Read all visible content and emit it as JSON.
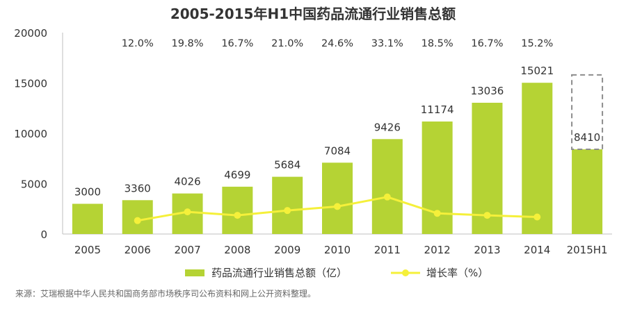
{
  "chart_data": {
    "type": "bar",
    "title": "2005-2015年H1中国药品流通行业销售总额",
    "categories": [
      "2005",
      "2006",
      "2007",
      "2008",
      "2009",
      "2010",
      "2011",
      "2012",
      "2013",
      "2014",
      "2015H1"
    ],
    "series": [
      {
        "name": "药品流通行业销售总额（亿）",
        "type": "bar",
        "values": [
          3000,
          3360,
          4026,
          4699,
          5684,
          7084,
          9426,
          11174,
          13036,
          15021,
          8410
        ],
        "labels": [
          "3000",
          "3360",
          "4026",
          "4699",
          "5684",
          "7084",
          "9426",
          "11174",
          "13036",
          "15021",
          "8410"
        ]
      },
      {
        "name": "增长率（%）",
        "type": "line",
        "values": [
          null,
          12.0,
          19.8,
          16.7,
          21.0,
          24.6,
          33.1,
          18.5,
          16.7,
          15.2,
          null
        ],
        "labels": [
          "",
          "12.0%",
          "19.8%",
          "16.7%",
          "21.0%",
          "24.6%",
          "33.1%",
          "18.5%",
          "16.7%",
          "15.2%",
          ""
        ]
      }
    ],
    "ylim": [
      0,
      20000
    ],
    "yticks": [
      "0",
      "5000",
      "10000",
      "15000",
      "20000"
    ],
    "grid": false,
    "legend_position": "bottom",
    "projected_category": "2015H1",
    "projection_outline_value": 15800,
    "colors": {
      "bar": "#b5d334",
      "line": "#f5f03a",
      "axis": "#bfbfbf",
      "dash": "#8c8c8c"
    }
  },
  "source_note": "来源：艾瑞根据中华人民共和国商务部市场秩序司公布资料和网上公开资料整理。"
}
